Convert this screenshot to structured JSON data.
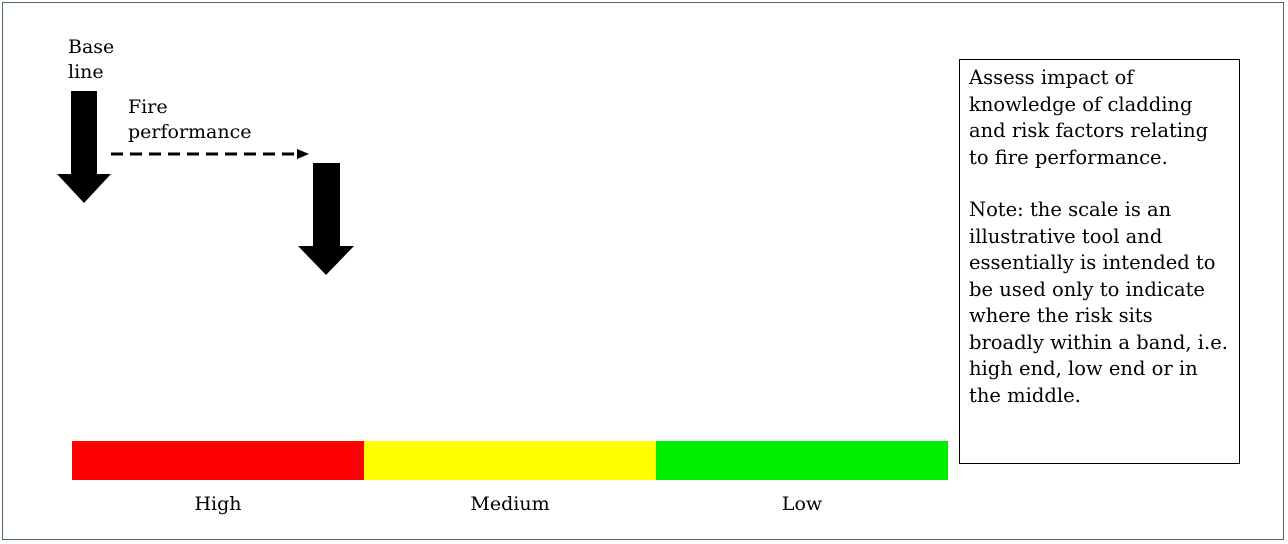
{
  "labels": {
    "baseline": "Base\nline",
    "fire_performance": "Fire\nperformance"
  },
  "scale": {
    "bands": [
      {
        "label": "High",
        "color": "#ff0000"
      },
      {
        "label": "Medium",
        "color": "#ffff00"
      },
      {
        "label": "Low",
        "color": "#00ee00"
      }
    ]
  },
  "note": {
    "paragraph1": "Assess impact of knowledge of cladding and risk factors relating to fire performance.",
    "paragraph2": "Note: the scale is an illustrative tool and essentially is intended to be used only to indicate where the risk sits broadly within a band, i.e. high end, low end or in the middle."
  }
}
